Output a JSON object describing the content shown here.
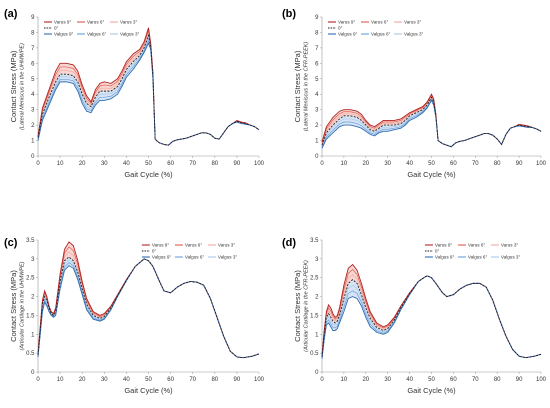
{
  "figure": {
    "x_label": "Gait Cycle (%)",
    "y_label_main": "Contact Stress (MPa)"
  },
  "chart_data": [
    {
      "panel_label": "(a)",
      "type": "line",
      "ylabel": "Contact Stress (MPa)",
      "ylabel_sub": "(Lateral Meniscus in the UHMWPE)",
      "xlabel": "Gait Cycle (%)",
      "xlim": [
        0,
        100
      ],
      "ylim": [
        0,
        9
      ],
      "xticks": [
        "0",
        "10",
        "20",
        "30",
        "40",
        "50",
        "60",
        "70",
        "80",
        "90",
        "100"
      ],
      "yticks": [
        "0",
        "1",
        "2",
        "3",
        "4",
        "5",
        "6",
        "7",
        "8",
        "9"
      ],
      "x": [
        0,
        2,
        5,
        8,
        10,
        13,
        16,
        18,
        20,
        22,
        24,
        26,
        28,
        30,
        33,
        36,
        38,
        40,
        43,
        46,
        48,
        50,
        51,
        52,
        53,
        54,
        55,
        57,
        59,
        61,
        63,
        65,
        67,
        70,
        72,
        74,
        76,
        78,
        80,
        82,
        84,
        86,
        88,
        90,
        92,
        94,
        96,
        98,
        100
      ],
      "upper": [
        1.3,
        3.1,
        4.3,
        5.5,
        6.0,
        6.0,
        5.9,
        5.5,
        4.6,
        3.9,
        3.5,
        4.3,
        4.7,
        4.8,
        4.7,
        5.0,
        5.5,
        6.1,
        6.6,
        6.9,
        7.4,
        8.3,
        7.3,
        5.4,
        1.1,
        0.95,
        0.85,
        0.75,
        0.7,
        0.95,
        1.05,
        1.1,
        1.15,
        1.3,
        1.4,
        1.5,
        1.5,
        1.4,
        1.15,
        1.1,
        1.5,
        1.9,
        2.1,
        2.3,
        2.2,
        2.15,
        2.0,
        1.9,
        1.7
      ],
      "mid": [
        1.2,
        2.7,
        3.8,
        4.8,
        5.3,
        5.3,
        5.2,
        4.8,
        4.0,
        3.4,
        3.2,
        3.8,
        4.2,
        4.2,
        4.2,
        4.5,
        5.0,
        5.6,
        6.1,
        6.5,
        7.0,
        7.8,
        7.1,
        5.2,
        1.1,
        0.95,
        0.85,
        0.75,
        0.7,
        0.95,
        1.05,
        1.1,
        1.15,
        1.3,
        1.4,
        1.5,
        1.5,
        1.4,
        1.15,
        1.1,
        1.5,
        1.9,
        2.1,
        2.25,
        2.15,
        2.1,
        2.0,
        1.9,
        1.7
      ],
      "lower": [
        1.0,
        2.3,
        3.3,
        4.3,
        4.8,
        4.8,
        4.7,
        4.2,
        3.4,
        2.9,
        2.8,
        3.3,
        3.6,
        3.6,
        3.7,
        4.0,
        4.5,
        5.1,
        5.6,
        6.2,
        6.7,
        7.3,
        6.9,
        5.0,
        1.1,
        0.95,
        0.85,
        0.75,
        0.7,
        0.95,
        1.05,
        1.1,
        1.15,
        1.3,
        1.4,
        1.5,
        1.5,
        1.4,
        1.15,
        1.1,
        1.5,
        1.9,
        2.1,
        2.2,
        2.1,
        2.05,
        2.0,
        1.9,
        1.7
      ],
      "legend": [
        "Varus 9°",
        "Varus 6°",
        "Varus 3°",
        "0°",
        "Valgus 9°",
        "Valgus 6°",
        "Valgus 3°"
      ],
      "legend_position": "top-left",
      "grid": false
    },
    {
      "panel_label": "(b)",
      "type": "line",
      "ylabel": "Contact Stress (MPa)",
      "ylabel_sub": "(Lateral Meniscus in the CFR-PEEK)",
      "xlabel": "Gait Cycle (%)",
      "xlim": [
        0,
        100
      ],
      "ylim": [
        0,
        9
      ],
      "xticks": [
        "0",
        "10",
        "20",
        "30",
        "40",
        "50",
        "60",
        "70",
        "80",
        "90",
        "100"
      ],
      "yticks": [
        "0",
        "1",
        "2",
        "3",
        "4",
        "5",
        "6",
        "7",
        "8",
        "9"
      ],
      "x": [
        0,
        2,
        5,
        8,
        10,
        13,
        16,
        18,
        20,
        22,
        24,
        26,
        28,
        30,
        33,
        36,
        38,
        40,
        43,
        46,
        48,
        50,
        51,
        52,
        53,
        54,
        55,
        57,
        59,
        61,
        63,
        65,
        67,
        70,
        72,
        74,
        76,
        78,
        80,
        82,
        84,
        86,
        88,
        90,
        92,
        94,
        96,
        98,
        100
      ],
      "upper": [
        0.9,
        1.9,
        2.5,
        2.9,
        3.0,
        3.0,
        2.9,
        2.7,
        2.3,
        2.0,
        1.9,
        2.1,
        2.3,
        2.3,
        2.3,
        2.4,
        2.6,
        2.8,
        3.0,
        3.2,
        3.5,
        4.0,
        3.7,
        2.7,
        1.0,
        0.9,
        0.8,
        0.7,
        0.6,
        0.85,
        0.95,
        1.0,
        1.1,
        1.25,
        1.35,
        1.45,
        1.45,
        1.35,
        1.1,
        0.75,
        1.4,
        1.8,
        1.9,
        2.05,
        2.0,
        1.95,
        1.85,
        1.75,
        1.6
      ],
      "mid": [
        0.7,
        1.5,
        2.0,
        2.4,
        2.6,
        2.6,
        2.5,
        2.3,
        2.0,
        1.7,
        1.6,
        1.8,
        2.0,
        2.0,
        2.0,
        2.1,
        2.3,
        2.6,
        2.8,
        3.0,
        3.3,
        3.8,
        3.5,
        2.6,
        1.0,
        0.9,
        0.8,
        0.7,
        0.6,
        0.85,
        0.95,
        1.0,
        1.1,
        1.25,
        1.35,
        1.45,
        1.45,
        1.35,
        1.1,
        0.75,
        1.4,
        1.8,
        1.9,
        2.0,
        1.95,
        1.9,
        1.85,
        1.75,
        1.6
      ],
      "lower": [
        0.5,
        1.1,
        1.5,
        1.9,
        2.0,
        2.0,
        1.9,
        1.8,
        1.6,
        1.4,
        1.3,
        1.5,
        1.6,
        1.6,
        1.7,
        1.8,
        2.0,
        2.3,
        2.5,
        2.8,
        3.1,
        3.6,
        3.3,
        2.5,
        1.0,
        0.9,
        0.8,
        0.7,
        0.6,
        0.85,
        0.95,
        1.0,
        1.1,
        1.25,
        1.35,
        1.45,
        1.45,
        1.35,
        1.1,
        0.75,
        1.4,
        1.8,
        1.9,
        1.95,
        1.9,
        1.85,
        1.85,
        1.75,
        1.6
      ],
      "legend": [
        "Varus 9°",
        "Varus 6°",
        "Varus 3°",
        "0°",
        "Valgus 9°",
        "Valgus 6°",
        "Valgus 3°"
      ],
      "legend_position": "top-left",
      "grid": false
    },
    {
      "panel_label": "(c)",
      "type": "line",
      "ylabel": "Contact Stress (MPa)",
      "ylabel_sub": "(Articular Cartilage in the UHMWPE)",
      "xlabel": "Gait Cycle (%)",
      "xlim": [
        0,
        100
      ],
      "ylim": [
        0,
        3.5
      ],
      "xticks": [
        "0",
        "10",
        "20",
        "30",
        "40",
        "50",
        "60",
        "70",
        "80",
        "90",
        "100"
      ],
      "yticks": [
        "0",
        "0.5",
        "1",
        "1.5",
        "2",
        "2.5",
        "3",
        "3.5"
      ],
      "x": [
        0,
        1,
        2,
        3,
        4,
        5,
        6,
        7,
        8,
        10,
        12,
        14,
        16,
        18,
        20,
        22,
        25,
        28,
        30,
        33,
        36,
        40,
        44,
        47,
        48,
        50,
        52,
        55,
        57,
        60,
        63,
        66,
        69,
        72,
        75,
        78,
        81,
        84,
        87,
        90,
        93,
        95,
        97,
        100
      ],
      "upper": [
        0.5,
        1.2,
        1.9,
        2.15,
        2.0,
        1.75,
        1.6,
        1.55,
        1.7,
        2.6,
        3.25,
        3.45,
        3.35,
        2.95,
        2.4,
        1.95,
        1.6,
        1.5,
        1.55,
        1.75,
        2.05,
        2.45,
        2.8,
        2.95,
        3.0,
        2.95,
        2.8,
        2.4,
        2.15,
        2.1,
        2.25,
        2.35,
        2.4,
        2.38,
        2.3,
        1.95,
        1.45,
        0.95,
        0.55,
        0.4,
        0.38,
        0.4,
        0.42,
        0.48
      ],
      "mid": [
        0.45,
        1.1,
        1.8,
        2.0,
        1.9,
        1.7,
        1.55,
        1.5,
        1.6,
        2.4,
        2.95,
        3.05,
        2.95,
        2.65,
        2.2,
        1.8,
        1.5,
        1.42,
        1.47,
        1.7,
        2.02,
        2.43,
        2.8,
        2.95,
        3.0,
        2.95,
        2.8,
        2.4,
        2.15,
        2.1,
        2.25,
        2.35,
        2.4,
        2.38,
        2.3,
        1.95,
        1.45,
        0.95,
        0.55,
        0.4,
        0.38,
        0.4,
        0.42,
        0.48
      ],
      "lower": [
        0.4,
        1.0,
        1.6,
        1.85,
        1.75,
        1.6,
        1.5,
        1.45,
        1.5,
        2.2,
        2.7,
        2.82,
        2.75,
        2.45,
        2.05,
        1.65,
        1.4,
        1.35,
        1.4,
        1.65,
        2.0,
        2.42,
        2.8,
        2.95,
        3.0,
        2.95,
        2.8,
        2.4,
        2.15,
        2.1,
        2.25,
        2.35,
        2.4,
        2.38,
        2.3,
        1.95,
        1.45,
        0.95,
        0.55,
        0.4,
        0.38,
        0.4,
        0.42,
        0.48
      ],
      "legend": [
        "Varus 9°",
        "Varus 6°",
        "Varus 3°",
        "0°",
        "Valgus 9°",
        "Valgus 6°",
        "Valgus 3°"
      ],
      "legend_position": "top-right",
      "grid": false
    },
    {
      "panel_label": "(d)",
      "type": "line",
      "ylabel": "Contact Stress (MPa)",
      "ylabel_sub": "(Articular Cartilage in the CFR-PEEK)",
      "xlabel": "Gait Cycle (%)",
      "xlim": [
        0,
        100
      ],
      "ylim": [
        0,
        3.5
      ],
      "xticks": [
        "0",
        "10",
        "20",
        "30",
        "40",
        "50",
        "60",
        "70",
        "80",
        "90",
        "100"
      ],
      "yticks": [
        "0",
        "0.5",
        "1",
        "1.5",
        "2",
        "2.5",
        "3",
        "3.5"
      ],
      "x": [
        0,
        1,
        2,
        3,
        4,
        5,
        6,
        7,
        8,
        10,
        12,
        14,
        16,
        18,
        20,
        22,
        25,
        28,
        30,
        33,
        36,
        40,
        44,
        47,
        48,
        50,
        52,
        55,
        57,
        60,
        63,
        66,
        69,
        72,
        75,
        78,
        81,
        84,
        87,
        90,
        93,
        95,
        97,
        100
      ],
      "upper": [
        0.45,
        1.1,
        1.6,
        1.78,
        1.7,
        1.55,
        1.45,
        1.5,
        1.7,
        2.3,
        2.75,
        2.85,
        2.7,
        2.35,
        1.95,
        1.6,
        1.3,
        1.2,
        1.25,
        1.45,
        1.75,
        2.1,
        2.4,
        2.52,
        2.55,
        2.5,
        2.35,
        2.1,
        2.0,
        2.05,
        2.2,
        2.3,
        2.35,
        2.35,
        2.25,
        1.9,
        1.4,
        0.95,
        0.6,
        0.42,
        0.38,
        0.4,
        0.42,
        0.47
      ],
      "mid": [
        0.4,
        1.0,
        1.45,
        1.55,
        1.45,
        1.35,
        1.3,
        1.35,
        1.5,
        1.95,
        2.35,
        2.45,
        2.35,
        2.05,
        1.7,
        1.42,
        1.18,
        1.1,
        1.15,
        1.38,
        1.7,
        2.08,
        2.4,
        2.52,
        2.55,
        2.5,
        2.35,
        2.1,
        2.0,
        2.05,
        2.2,
        2.3,
        2.35,
        2.35,
        2.25,
        1.9,
        1.4,
        0.95,
        0.6,
        0.42,
        0.38,
        0.4,
        0.42,
        0.47
      ],
      "lower": [
        0.35,
        0.85,
        1.25,
        1.3,
        1.2,
        1.1,
        1.1,
        1.15,
        1.3,
        1.6,
        1.95,
        2.0,
        1.95,
        1.75,
        1.45,
        1.2,
        1.05,
        1.0,
        1.05,
        1.3,
        1.65,
        2.05,
        2.4,
        2.52,
        2.55,
        2.5,
        2.35,
        2.1,
        2.0,
        2.05,
        2.2,
        2.3,
        2.35,
        2.35,
        2.25,
        1.9,
        1.4,
        0.95,
        0.6,
        0.42,
        0.38,
        0.4,
        0.42,
        0.47
      ],
      "legend": [
        "Varus 9°",
        "Varus 6°",
        "Varus 3°",
        "0°",
        "Valgus 9°",
        "Valgus 6°",
        "Valgus 3°"
      ],
      "legend_position": "top-right",
      "grid": false
    }
  ],
  "colors": {
    "varus_dark": "#b22222",
    "varus_mid": "#e05a4f",
    "varus_light": "#f2aaa0",
    "neutral": "#222222",
    "valgus_dark": "#2e6db4",
    "valgus_mid": "#6a9fd8",
    "valgus_light": "#a9c8ec",
    "varus_fill": "#f5c9c3",
    "valgus_fill": "#c8dbf2",
    "axis": "#999999",
    "tick_text": "#333333"
  }
}
